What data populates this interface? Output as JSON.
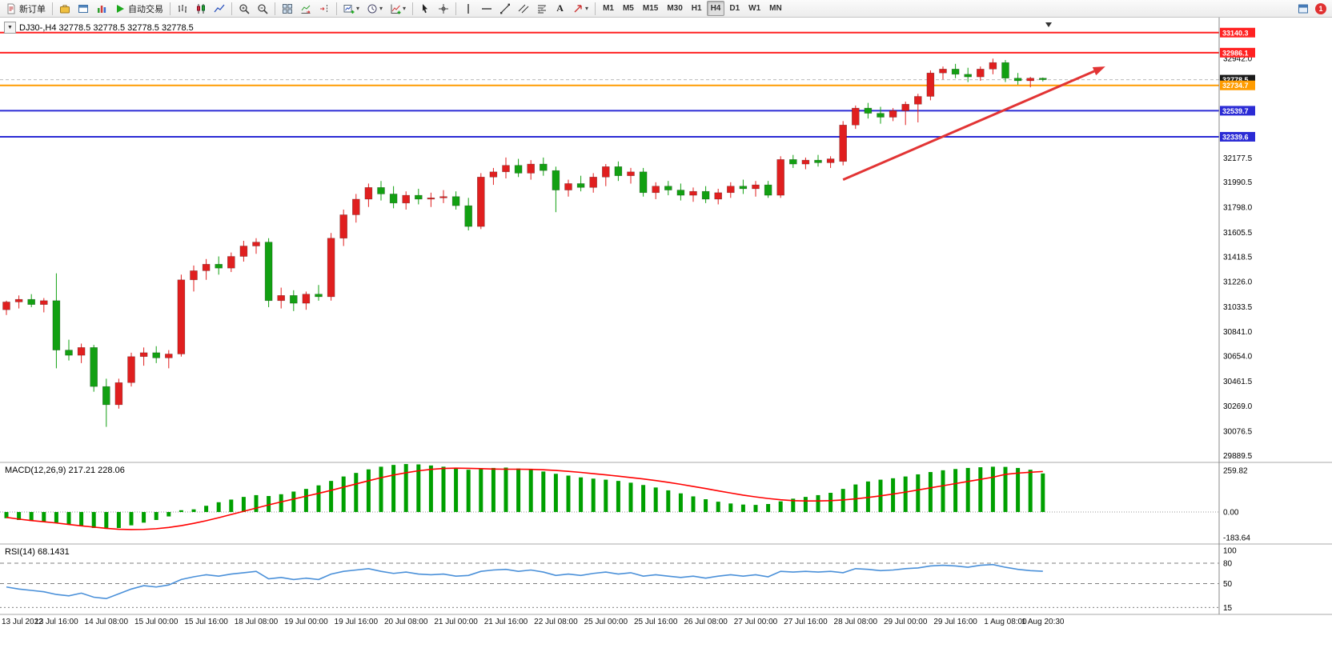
{
  "toolbar": {
    "new_order": "新订单",
    "autotrading": "自动交易",
    "text_tool": "A",
    "timeframes": [
      "M1",
      "M5",
      "M15",
      "M30",
      "H1",
      "H4",
      "D1",
      "W1",
      "MN"
    ],
    "active_timeframe": "H4",
    "notification_count": "1"
  },
  "chart": {
    "symbol_header": "DJ30-,H4 32778.5 32778.5 32778.5 32778.5",
    "macd_label": "MACD(12,26,9) 217.21 228.06",
    "rsi_label": "RSI(14) 68.1431",
    "colors": {
      "bull": "#e01f1f",
      "bear": "#12a012",
      "macd_hist": "#00a000",
      "macd_signal": "#ff0000",
      "rsi_line": "#4a90d9",
      "hline_red": "#ff2222",
      "hline_orange": "#ff9c00",
      "hline_blue": "#2b2bd5",
      "arrow": "#e23434"
    },
    "chart_data": {
      "type": "candlestick",
      "symbol": "DJ30-",
      "timeframe": "H4",
      "current_price": 32778.5,
      "price_axis_labels": [
        32942.0,
        32177.5,
        31990.5,
        31798.0,
        31605.5,
        31418.5,
        31226.0,
        31033.5,
        30841.0,
        30654.0,
        30461.5,
        30269.0,
        30076.5,
        29889.5
      ],
      "hlines": [
        {
          "price": 33140.3,
          "color": "red"
        },
        {
          "price": 32986.1,
          "color": "red"
        },
        {
          "price": 32734.7,
          "color": "orange"
        },
        {
          "price": 32539.7,
          "color": "blue"
        },
        {
          "price": 32339.6,
          "color": "blue"
        }
      ],
      "candles": [
        [
          31010,
          31080,
          30970,
          31070
        ],
        [
          31070,
          31120,
          31020,
          31090
        ],
        [
          31090,
          31130,
          31030,
          31050
        ],
        [
          31050,
          31100,
          30990,
          31080
        ],
        [
          31080,
          31290,
          30560,
          30700
        ],
        [
          30700,
          30780,
          30620,
          30660
        ],
        [
          30660,
          30750,
          30600,
          30720
        ],
        [
          30720,
          30740,
          30380,
          30420
        ],
        [
          30420,
          30480,
          30110,
          30280
        ],
        [
          30280,
          30480,
          30250,
          30450
        ],
        [
          30450,
          30680,
          30420,
          30650
        ],
        [
          30650,
          30720,
          30580,
          30680
        ],
        [
          30680,
          30730,
          30600,
          30640
        ],
        [
          30640,
          30700,
          30560,
          30670
        ],
        [
          30670,
          31280,
          30650,
          31240
        ],
        [
          31240,
          31350,
          31150,
          31310
        ],
        [
          31310,
          31400,
          31240,
          31360
        ],
        [
          31360,
          31420,
          31280,
          31330
        ],
        [
          31330,
          31450,
          31300,
          31420
        ],
        [
          31420,
          31540,
          31380,
          31500
        ],
        [
          31500,
          31560,
          31440,
          31530
        ],
        [
          31530,
          31560,
          31030,
          31080
        ],
        [
          31080,
          31180,
          31020,
          31120
        ],
        [
          31120,
          31160,
          31000,
          31060
        ],
        [
          31060,
          31150,
          31010,
          31130
        ],
        [
          31130,
          31200,
          31080,
          31110
        ],
        [
          31110,
          31600,
          31080,
          31560
        ],
        [
          31560,
          31780,
          31500,
          31740
        ],
        [
          31740,
          31900,
          31680,
          31860
        ],
        [
          31860,
          31980,
          31800,
          31950
        ],
        [
          31950,
          32000,
          31850,
          31900
        ],
        [
          31900,
          31960,
          31790,
          31830
        ],
        [
          31830,
          31920,
          31780,
          31890
        ],
        [
          31890,
          31940,
          31820,
          31860
        ],
        [
          31860,
          31910,
          31800,
          31870
        ],
        [
          31870,
          31930,
          31830,
          31880
        ],
        [
          31880,
          31920,
          31780,
          31810
        ],
        [
          31810,
          31870,
          31620,
          31650
        ],
        [
          31650,
          32060,
          31630,
          32030
        ],
        [
          32030,
          32100,
          31970,
          32070
        ],
        [
          32070,
          32180,
          32020,
          32120
        ],
        [
          32120,
          32170,
          32030,
          32060
        ],
        [
          32060,
          32160,
          32010,
          32130
        ],
        [
          32130,
          32180,
          32040,
          32080
        ],
        [
          32080,
          32110,
          31760,
          31930
        ],
        [
          31930,
          32010,
          31880,
          31980
        ],
        [
          31980,
          32040,
          31920,
          31950
        ],
        [
          31950,
          32060,
          31910,
          32030
        ],
        [
          32030,
          32130,
          31960,
          32110
        ],
        [
          32110,
          32150,
          32000,
          32040
        ],
        [
          32040,
          32100,
          31980,
          32070
        ],
        [
          32070,
          32100,
          31880,
          31910
        ],
        [
          31910,
          31990,
          31860,
          31960
        ],
        [
          31960,
          32000,
          31890,
          31930
        ],
        [
          31930,
          31980,
          31850,
          31890
        ],
        [
          31890,
          31950,
          31840,
          31920
        ],
        [
          31920,
          31960,
          31830,
          31860
        ],
        [
          31860,
          31940,
          31820,
          31910
        ],
        [
          31910,
          31990,
          31870,
          31960
        ],
        [
          31960,
          32010,
          31900,
          31940
        ],
        [
          31940,
          32000,
          31880,
          31970
        ],
        [
          31970,
          32000,
          31870,
          31890
        ],
        [
          31890,
          32190,
          31870,
          32165
        ],
        [
          32165,
          32200,
          32100,
          32130
        ],
        [
          32130,
          32180,
          32090,
          32160
        ],
        [
          32160,
          32200,
          32110,
          32140
        ],
        [
          32140,
          32190,
          32100,
          32170
        ],
        [
          32150,
          32460,
          32120,
          32430
        ],
        [
          32430,
          32580,
          32400,
          32560
        ],
        [
          32560,
          32600,
          32480,
          32520
        ],
        [
          32520,
          32570,
          32440,
          32490
        ],
        [
          32490,
          32560,
          32460,
          32540
        ],
        [
          32540,
          32610,
          32430,
          32590
        ],
        [
          32590,
          32670,
          32450,
          32650
        ],
        [
          32650,
          32850,
          32620,
          32830
        ],
        [
          32830,
          32880,
          32780,
          32860
        ],
        [
          32860,
          32900,
          32790,
          32820
        ],
        [
          32820,
          32870,
          32760,
          32800
        ],
        [
          32800,
          32880,
          32770,
          32860
        ],
        [
          32860,
          32940,
          32820,
          32910
        ],
        [
          32910,
          32930,
          32760,
          32790
        ],
        [
          32790,
          32830,
          32740,
          32770
        ],
        [
          32770,
          32800,
          32720,
          32790
        ],
        [
          32790,
          32795,
          32765,
          32778.5
        ]
      ],
      "time_labels": [
        {
          "i": 0,
          "t": "13 Jul 2022"
        },
        {
          "i": 4,
          "t": "13 Jul 16:00"
        },
        {
          "i": 8,
          "t": "14 Jul 08:00"
        },
        {
          "i": 12,
          "t": "15 Jul 00:00"
        },
        {
          "i": 16,
          "t": "15 Jul 16:00"
        },
        {
          "i": 20,
          "t": "18 Jul 08:00"
        },
        {
          "i": 24,
          "t": "19 Jul 00:00"
        },
        {
          "i": 28,
          "t": "19 Jul 16:00"
        },
        {
          "i": 32,
          "t": "20 Jul 08:00"
        },
        {
          "i": 36,
          "t": "21 Jul 00:00"
        },
        {
          "i": 40,
          "t": "21 Jul 16:00"
        },
        {
          "i": 44,
          "t": "22 Jul 08:00"
        },
        {
          "i": 48,
          "t": "25 Jul 00:00"
        },
        {
          "i": 52,
          "t": "25 Jul 16:00"
        },
        {
          "i": 56,
          "t": "26 Jul 08:00"
        },
        {
          "i": 60,
          "t": "27 Jul 00:00"
        },
        {
          "i": 64,
          "t": "27 Jul 16:00"
        },
        {
          "i": 68,
          "t": "28 Jul 08:00"
        },
        {
          "i": 72,
          "t": "29 Jul 00:00"
        },
        {
          "i": 76,
          "t": "29 Jul 16:00"
        },
        {
          "i": 80,
          "t": "1 Aug 08:00"
        },
        {
          "i": 83,
          "t": "1 Aug 20:30"
        }
      ],
      "macd": {
        "axis": [
          259.82,
          0.0,
          -183.64
        ],
        "hist": [
          -35,
          -45,
          -50,
          -55,
          -60,
          -70,
          -80,
          -90,
          -95,
          -90,
          -75,
          -60,
          -45,
          -25,
          10,
          15,
          35,
          55,
          70,
          85,
          95,
          90,
          100,
          115,
          130,
          150,
          175,
          200,
          220,
          240,
          255,
          265,
          270,
          268,
          262,
          255,
          245,
          238,
          242,
          248,
          250,
          245,
          238,
          228,
          215,
          205,
          195,
          188,
          182,
          175,
          165,
          152,
          138,
          122,
          105,
          88,
          72,
          58,
          48,
          42,
          40,
          45,
          60,
          75,
          85,
          95,
          108,
          130,
          155,
          172,
          182,
          190,
          200,
          212,
          225,
          235,
          242,
          248,
          252,
          255,
          254,
          248,
          238,
          217
        ],
        "signal": [
          -30,
          -40,
          -48,
          -55,
          -62,
          -70,
          -78,
          -85,
          -92,
          -97,
          -99,
          -98,
          -94,
          -87,
          -77,
          -64,
          -49,
          -32,
          -14,
          4,
          22,
          40,
          57,
          73,
          89,
          105,
          122,
          140,
          158,
          176,
          193,
          208,
          221,
          232,
          240,
          245,
          247,
          246,
          244,
          242,
          241,
          241,
          240,
          238,
          234,
          229,
          223,
          216,
          209,
          202,
          194,
          186,
          177,
          167,
          156,
          144,
          132,
          119,
          107,
          95,
          85,
          76,
          69,
          64,
          62,
          62,
          64,
          68,
          74,
          82,
          91,
          101,
          112,
          124,
          136,
          148,
          160,
          172,
          184,
          196,
          212,
          219,
          224,
          228
        ]
      },
      "rsi": {
        "levels": [
          100,
          80,
          50,
          15
        ],
        "values": [
          45,
          42,
          40,
          38,
          34,
          32,
          36,
          30,
          28,
          35,
          42,
          47,
          45,
          48,
          56,
          60,
          63,
          61,
          64,
          66,
          68,
          57,
          59,
          56,
          58,
          56,
          64,
          68,
          70,
          72,
          68,
          65,
          67,
          64,
          63,
          64,
          61,
          62,
          68,
          70,
          71,
          68,
          70,
          67,
          62,
          64,
          62,
          65,
          67,
          64,
          66,
          61,
          63,
          61,
          59,
          61,
          58,
          61,
          63,
          61,
          63,
          60,
          68,
          67,
          68,
          67,
          68,
          66,
          72,
          71,
          69,
          70,
          72,
          73,
          76,
          77,
          76,
          74,
          77,
          78,
          74,
          71,
          69,
          68.14
        ]
      },
      "trend_arrow": {
        "i1": 67,
        "p1": 32010,
        "i2": 88,
        "p2": 32880
      }
    }
  }
}
